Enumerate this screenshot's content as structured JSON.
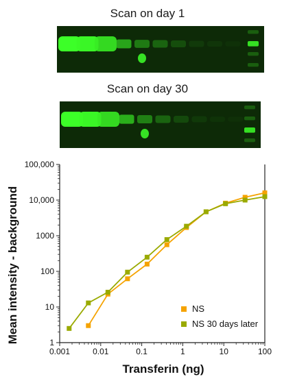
{
  "blots": [
    {
      "title": "Scan on day 1",
      "background": "#0d2a07",
      "bands": [
        {
          "intensity": 1.0,
          "wide": true
        },
        {
          "intensity": 0.98,
          "wide": true
        },
        {
          "intensity": 0.9,
          "wide": true
        },
        {
          "intensity": 0.75
        },
        {
          "intensity": 0.6
        },
        {
          "intensity": 0.5
        },
        {
          "intensity": 0.38
        },
        {
          "intensity": 0.25
        },
        {
          "intensity": 0.14
        },
        {
          "intensity": 0.06
        }
      ],
      "extra_spot": {
        "lane": 4,
        "intensity": 0.85
      },
      "ladder": [
        0.35,
        0.9,
        0.35,
        0.35
      ]
    },
    {
      "title": "Scan on day 30",
      "background": "#0d2a07",
      "bands": [
        {
          "intensity": 1.0,
          "wide": true
        },
        {
          "intensity": 0.98,
          "wide": true
        },
        {
          "intensity": 0.9,
          "wide": true
        },
        {
          "intensity": 0.78
        },
        {
          "intensity": 0.62
        },
        {
          "intensity": 0.5
        },
        {
          "intensity": 0.36
        },
        {
          "intensity": 0.22
        },
        {
          "intensity": 0.1
        },
        {
          "intensity": 0.04
        }
      ],
      "extra_spot": {
        "lane": 4,
        "intensity": 0.85
      },
      "ladder": [
        0.35,
        0.35,
        0.9,
        0.35
      ]
    }
  ],
  "chart_data": {
    "type": "line",
    "xlabel": "Transferin (ng)",
    "ylabel": "Mean intensity - background",
    "xscale": "log",
    "yscale": "log",
    "xlim": [
      0.001,
      100
    ],
    "ylim": [
      1,
      100000
    ],
    "x_tick_labels": [
      "0.001",
      "0.01",
      "0.1",
      "1",
      "10",
      "100"
    ],
    "y_tick_labels": [
      "1",
      "10",
      "100",
      "1000",
      "10,000",
      "100,000"
    ],
    "legend_position": "bottom-right",
    "series": [
      {
        "name": "NS",
        "color": "#f5a300",
        "x": [
          0.005,
          0.015,
          0.045,
          0.135,
          0.41,
          1.23,
          3.7,
          11,
          33,
          100
        ],
        "y": [
          3,
          23,
          62,
          160,
          560,
          1700,
          4700,
          8200,
          12000,
          16000
        ]
      },
      {
        "name": "NS 30 days later",
        "color": "#9aaa00",
        "x": [
          0.0017,
          0.005,
          0.015,
          0.045,
          0.135,
          0.41,
          1.23,
          3.7,
          11,
          33,
          100
        ],
        "y": [
          2.5,
          13,
          26,
          95,
          250,
          780,
          1850,
          4700,
          7900,
          10000,
          12500
        ]
      }
    ]
  }
}
